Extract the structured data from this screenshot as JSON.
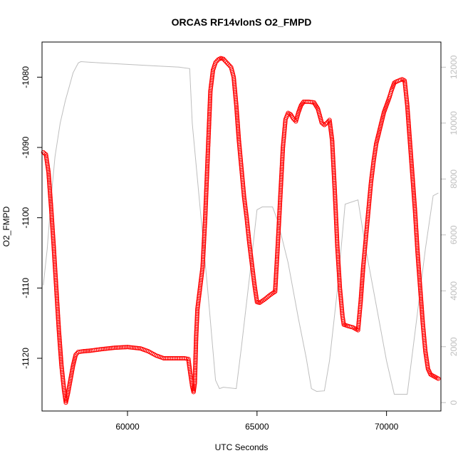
{
  "chart_data": {
    "type": "scatter",
    "title": "ORCAS RF14vlonS O2_FMPD",
    "xlabel": "UTC Seconds",
    "ylabel": "O2_FMPD",
    "xlim": [
      56700,
      72100
    ],
    "ylim": [
      -1127.5,
      -1075
    ],
    "y2lim": [
      -300,
      12900
    ],
    "x_ticks": [
      60000,
      65000,
      70000
    ],
    "x_tick_labels": [
      "60000",
      "65000",
      "70000"
    ],
    "y_ticks": [
      -1120,
      -1110,
      -1100,
      -1090,
      -1080
    ],
    "y_tick_labels": [
      "-1120",
      "-1110",
      "-1100",
      "-1090",
      "-1080"
    ],
    "y2_ticks": [
      0,
      2000,
      4000,
      6000,
      8000,
      10000,
      12000
    ],
    "y2_tick_labels": [
      "0",
      "2000",
      "4000",
      "6000",
      "8000",
      "10000",
      "12000"
    ],
    "grid": false,
    "legend": "none",
    "colors": {
      "points": "#ff0000",
      "line": "#bebebe",
      "axis": "#000000",
      "secondary_axis": "#bebebe"
    },
    "series": [
      {
        "kind": "points",
        "axis": "left",
        "marker": "open-circle",
        "points": [
          [
            56750,
            -1090.7
          ],
          [
            56850,
            -1091.0
          ],
          [
            56950,
            -1093.5
          ],
          [
            57050,
            -1098.5
          ],
          [
            57150,
            -1104.0
          ],
          [
            57250,
            -1110.0
          ],
          [
            57350,
            -1116.0
          ],
          [
            57450,
            -1121.0
          ],
          [
            57550,
            -1124.5
          ],
          [
            57620,
            -1126.3
          ],
          [
            57700,
            -1125.0
          ],
          [
            57800,
            -1123.0
          ],
          [
            57900,
            -1121.0
          ],
          [
            58000,
            -1119.5
          ],
          [
            58100,
            -1119.1
          ],
          [
            58300,
            -1119.0
          ],
          [
            58600,
            -1118.9
          ],
          [
            59000,
            -1118.7
          ],
          [
            59500,
            -1118.5
          ],
          [
            60000,
            -1118.4
          ],
          [
            60500,
            -1118.6
          ],
          [
            60800,
            -1119.0
          ],
          [
            61100,
            -1119.6
          ],
          [
            61400,
            -1120.0
          ],
          [
            61800,
            -1120.0
          ],
          [
            62200,
            -1120.0
          ],
          [
            62350,
            -1120.1
          ],
          [
            62400,
            -1121.5
          ],
          [
            62500,
            -1124.0
          ],
          [
            62550,
            -1124.8
          ],
          [
            62600,
            -1123.5
          ],
          [
            62650,
            -1117.0
          ],
          [
            62700,
            -1113.0
          ],
          [
            62800,
            -1110.0
          ],
          [
            62900,
            -1107.0
          ],
          [
            63000,
            -1100.0
          ],
          [
            63100,
            -1091.0
          ],
          [
            63200,
            -1082.0
          ],
          [
            63300,
            -1079.0
          ],
          [
            63400,
            -1077.9
          ],
          [
            63500,
            -1077.5
          ],
          [
            63600,
            -1077.3
          ],
          [
            63700,
            -1077.4
          ],
          [
            63800,
            -1077.8
          ],
          [
            63900,
            -1078.2
          ],
          [
            64000,
            -1078.6
          ],
          [
            64100,
            -1080.0
          ],
          [
            64200,
            -1084.0
          ],
          [
            64300,
            -1089.0
          ],
          [
            64400,
            -1093.0
          ],
          [
            64500,
            -1097.0
          ],
          [
            64600,
            -1100.0
          ],
          [
            64700,
            -1103.5
          ],
          [
            64800,
            -1106.5
          ],
          [
            64900,
            -1109.5
          ],
          [
            65000,
            -1112.0
          ],
          [
            65100,
            -1112.1
          ],
          [
            65300,
            -1111.6
          ],
          [
            65500,
            -1111.0
          ],
          [
            65700,
            -1110.5
          ],
          [
            65800,
            -1104.0
          ],
          [
            65900,
            -1097.0
          ],
          [
            66000,
            -1090.0
          ],
          [
            66100,
            -1086.0
          ],
          [
            66200,
            -1085.1
          ],
          [
            66300,
            -1085.3
          ],
          [
            66400,
            -1085.9
          ],
          [
            66500,
            -1086.3
          ],
          [
            66600,
            -1085.0
          ],
          [
            66700,
            -1084.0
          ],
          [
            66800,
            -1083.5
          ],
          [
            67000,
            -1083.5
          ],
          [
            67200,
            -1083.6
          ],
          [
            67350,
            -1084.5
          ],
          [
            67500,
            -1086.5
          ],
          [
            67600,
            -1086.8
          ],
          [
            67700,
            -1086.5
          ],
          [
            67800,
            -1086.1
          ],
          [
            67900,
            -1089.0
          ],
          [
            68000,
            -1096.0
          ],
          [
            68100,
            -1104.0
          ],
          [
            68200,
            -1110.0
          ],
          [
            68300,
            -1114.0
          ],
          [
            68350,
            -1115.2
          ],
          [
            68500,
            -1115.4
          ],
          [
            68700,
            -1115.6
          ],
          [
            68900,
            -1116.0
          ],
          [
            69000,
            -1112.0
          ],
          [
            69100,
            -1107.0
          ],
          [
            69200,
            -1103.0
          ],
          [
            69300,
            -1099.0
          ],
          [
            69400,
            -1095.0
          ],
          [
            69500,
            -1092.0
          ],
          [
            69600,
            -1089.5
          ],
          [
            69700,
            -1088.0
          ],
          [
            69800,
            -1086.5
          ],
          [
            69900,
            -1085.0
          ],
          [
            70000,
            -1084.0
          ],
          [
            70100,
            -1083.0
          ],
          [
            70200,
            -1081.8
          ],
          [
            70300,
            -1080.8
          ],
          [
            70400,
            -1080.6
          ],
          [
            70600,
            -1080.3
          ],
          [
            70700,
            -1080.5
          ],
          [
            70800,
            -1084.0
          ],
          [
            70900,
            -1089.0
          ],
          [
            71000,
            -1094.0
          ],
          [
            71100,
            -1099.0
          ],
          [
            71200,
            -1105.0
          ],
          [
            71300,
            -1110.0
          ],
          [
            71400,
            -1115.0
          ],
          [
            71500,
            -1119.0
          ],
          [
            71600,
            -1121.5
          ],
          [
            71700,
            -1122.3
          ],
          [
            71850,
            -1122.6
          ],
          [
            72000,
            -1122.9
          ]
        ]
      },
      {
        "kind": "line",
        "axis": "right",
        "points": [
          [
            56750,
            4200
          ],
          [
            56900,
            5500
          ],
          [
            57050,
            7300
          ],
          [
            57200,
            8800
          ],
          [
            57400,
            10000
          ],
          [
            57600,
            10800
          ],
          [
            57750,
            11300
          ],
          [
            57900,
            11800
          ],
          [
            58100,
            12150
          ],
          [
            58200,
            12200
          ],
          [
            59000,
            12150
          ],
          [
            60000,
            12100
          ],
          [
            61000,
            12050
          ],
          [
            62000,
            12000
          ],
          [
            62400,
            11950
          ],
          [
            62500,
            10000
          ],
          [
            62800,
            7000
          ],
          [
            63100,
            4000
          ],
          [
            63400,
            800
          ],
          [
            63550,
            500
          ],
          [
            63700,
            550
          ],
          [
            64200,
            500
          ],
          [
            64400,
            2000
          ],
          [
            64700,
            4400
          ],
          [
            65000,
            6900
          ],
          [
            65200,
            7000
          ],
          [
            65600,
            7000
          ],
          [
            65800,
            6500
          ],
          [
            66200,
            5000
          ],
          [
            66600,
            3000
          ],
          [
            66900,
            1600
          ],
          [
            67100,
            500
          ],
          [
            67300,
            400
          ],
          [
            67600,
            420
          ],
          [
            67800,
            1500
          ],
          [
            68100,
            4000
          ],
          [
            68400,
            7100
          ],
          [
            68900,
            7250
          ],
          [
            69200,
            5500
          ],
          [
            69600,
            3500
          ],
          [
            70000,
            1500
          ],
          [
            70300,
            300
          ],
          [
            70800,
            300
          ],
          [
            71100,
            2500
          ],
          [
            71500,
            5500
          ],
          [
            71800,
            7400
          ],
          [
            72000,
            7500
          ]
        ]
      }
    ]
  }
}
